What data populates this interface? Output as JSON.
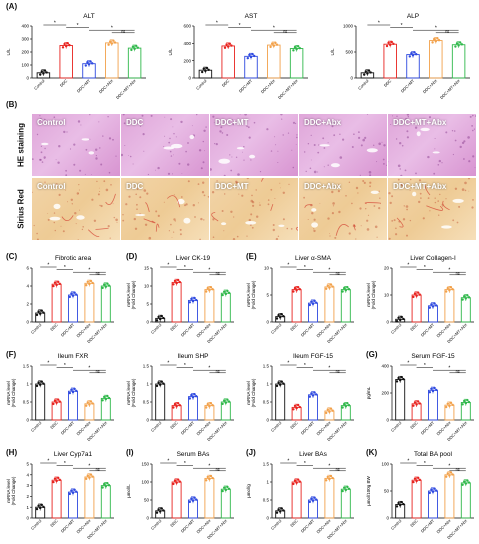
{
  "panel_letters": [
    "(A)",
    "(B)",
    "(C)",
    "(D)",
    "(E)",
    "(F)",
    "(G)",
    "(H)",
    "(I)",
    "(J)",
    "(K)"
  ],
  "histology": {
    "rows": [
      "HE staining",
      "Sirius Red"
    ],
    "groups": [
      "Control",
      "DDC",
      "DDC+MT",
      "DDC+Abx",
      "DDC+MT+Abx"
    ]
  },
  "colors": {
    "Control": "#111111",
    "DDC": "#e8231f",
    "DDC+MT": "#2e49e0",
    "DDC+Abx": "#f2a14a",
    "DDC+MT+Abx": "#2fb84a"
  },
  "chart_data": [
    {
      "type": "bar",
      "title": "ALT",
      "ylabel": "U/L",
      "categories": [
        "Control",
        "DDC",
        "DDC+MT",
        "DDC+Abx",
        "DDC+MT+Abx"
      ],
      "values": [
        40,
        250,
        110,
        270,
        230
      ],
      "ylim": [
        0,
        400
      ],
      "yticks": [
        0,
        100,
        200,
        300,
        400
      ],
      "sig": [
        {
          "a": 0,
          "b": 1,
          "t": "*"
        },
        {
          "a": 1,
          "b": 2,
          "t": "*"
        },
        {
          "a": 2,
          "b": 4,
          "t": "*"
        },
        {
          "a": 3,
          "b": 4,
          "t": "ns"
        }
      ]
    },
    {
      "type": "bar",
      "title": "AST",
      "ylabel": "U/L",
      "categories": [
        "Control",
        "DDC",
        "DDC+MT",
        "DDC+Abx",
        "DDC+MT+Abx"
      ],
      "values": [
        90,
        370,
        250,
        380,
        340
      ],
      "ylim": [
        0,
        600
      ],
      "yticks": [
        0,
        200,
        400,
        600
      ],
      "sig": [
        {
          "a": 0,
          "b": 1,
          "t": "*"
        },
        {
          "a": 1,
          "b": 2,
          "t": "*"
        },
        {
          "a": 2,
          "b": 4,
          "t": "*"
        },
        {
          "a": 3,
          "b": 4,
          "t": "ns"
        }
      ]
    },
    {
      "type": "bar",
      "title": "ALP",
      "ylabel": "U/L",
      "categories": [
        "Control",
        "DDC",
        "DDC+MT",
        "DDC+Abx",
        "DDC+MT+Abx"
      ],
      "values": [
        100,
        650,
        450,
        720,
        640
      ],
      "ylim": [
        0,
        1000
      ],
      "yticks": [
        0,
        500,
        1000
      ],
      "sig": [
        {
          "a": 0,
          "b": 1,
          "t": "*"
        },
        {
          "a": 1,
          "b": 2,
          "t": "*"
        },
        {
          "a": 2,
          "b": 4,
          "t": "*"
        },
        {
          "a": 3,
          "b": 4,
          "t": "ns"
        }
      ]
    },
    {
      "type": "bar",
      "title": "Fibrotic area",
      "ylabel": "",
      "categories": [
        "Control",
        "DDC",
        "DDC+MT",
        "DDC+Abx",
        "DDC+MT+Abx"
      ],
      "values": [
        1,
        4.2,
        3,
        4.3,
        4
      ],
      "ylim": [
        0,
        6
      ],
      "yticks": [
        0,
        2,
        4,
        6
      ],
      "sig": [
        {
          "a": 0,
          "b": 1,
          "t": "*"
        },
        {
          "a": 1,
          "b": 2,
          "t": "*"
        },
        {
          "a": 2,
          "b": 4,
          "t": "*"
        },
        {
          "a": 3,
          "b": 4,
          "t": "ns"
        }
      ]
    },
    {
      "type": "bar",
      "title": "Liver CK-19",
      "ylabel": "mRNA level\n(Fold Change)",
      "categories": [
        "Control",
        "DDC",
        "DDC+MT",
        "DDC+Abx",
        "DDC+MT+Abx"
      ],
      "values": [
        1,
        11,
        6,
        9,
        8
      ],
      "ylim": [
        0,
        15
      ],
      "yticks": [
        0,
        5,
        10,
        15
      ],
      "sig": [
        {
          "a": 0,
          "b": 1,
          "t": "*"
        },
        {
          "a": 1,
          "b": 2,
          "t": "*"
        },
        {
          "a": 2,
          "b": 4,
          "t": "*"
        },
        {
          "a": 3,
          "b": 4,
          "t": "ns"
        }
      ]
    },
    {
      "type": "bar",
      "title": "Liver α-SMA",
      "ylabel": "mRNA level\n(Fold Change)",
      "categories": [
        "Control",
        "DDC",
        "DDC+MT",
        "DDC+Abx",
        "DDC+MT+Abx"
      ],
      "values": [
        1,
        6,
        3.5,
        6.5,
        6
      ],
      "ylim": [
        0,
        10
      ],
      "yticks": [
        0,
        5,
        10
      ],
      "sig": [
        {
          "a": 0,
          "b": 1,
          "t": "*"
        },
        {
          "a": 1,
          "b": 2,
          "t": "*"
        },
        {
          "a": 2,
          "b": 4,
          "t": "*"
        },
        {
          "a": 3,
          "b": 4,
          "t": "ns"
        }
      ]
    },
    {
      "type": "bar",
      "title": "Liver Collagen-I",
      "ylabel": "mRNA level\n(Fold Change)",
      "categories": [
        "Control",
        "DDC",
        "DDC+MT",
        "DDC+Abx",
        "DDC+MT+Abx"
      ],
      "values": [
        1,
        10,
        6,
        12,
        9
      ],
      "ylim": [
        0,
        20
      ],
      "yticks": [
        0,
        10,
        20
      ],
      "sig": [
        {
          "a": 0,
          "b": 1,
          "t": "*"
        },
        {
          "a": 1,
          "b": 2,
          "t": "*"
        },
        {
          "a": 2,
          "b": 4,
          "t": "*"
        },
        {
          "a": 3,
          "b": 4,
          "t": "ns"
        }
      ]
    },
    {
      "type": "bar",
      "title": "Ileum FXR",
      "ylabel": "mRNA level\n(Fold Change)",
      "categories": [
        "Control",
        "DDC",
        "DDC+MT",
        "DDC+Abx",
        "DDC+MT+Abx"
      ],
      "values": [
        1,
        0.5,
        0.8,
        0.45,
        0.6
      ],
      "ylim": [
        0,
        1.5
      ],
      "yticks": [
        0,
        0.5,
        1,
        1.5
      ],
      "sig": [
        {
          "a": 0,
          "b": 1,
          "t": "*"
        },
        {
          "a": 1,
          "b": 2,
          "t": "*"
        },
        {
          "a": 2,
          "b": 4,
          "t": "*"
        },
        {
          "a": 3,
          "b": 4,
          "t": "ns"
        }
      ]
    },
    {
      "type": "bar",
      "title": "Ileum SHP",
      "ylabel": "mRNA level\n(Fold Change)",
      "categories": [
        "Control",
        "DDC",
        "DDC+MT",
        "DDC+Abx",
        "DDC+MT+Abx"
      ],
      "values": [
        1,
        0.4,
        0.65,
        0.4,
        0.5
      ],
      "ylim": [
        0,
        1.5
      ],
      "yticks": [
        0,
        0.5,
        1,
        1.5
      ],
      "sig": [
        {
          "a": 0,
          "b": 1,
          "t": "*"
        },
        {
          "a": 1,
          "b": 2,
          "t": "*"
        },
        {
          "a": 2,
          "b": 4,
          "t": "*"
        },
        {
          "a": 3,
          "b": 4,
          "t": "ns"
        }
      ]
    },
    {
      "type": "bar",
      "title": "Ileum FGF-15",
      "ylabel": "mRNA level\n(Fold Change)",
      "categories": [
        "Control",
        "DDC",
        "DDC+MT",
        "DDC+Abx",
        "DDC+MT+Abx"
      ],
      "values": [
        1,
        0.35,
        0.7,
        0.25,
        0.4
      ],
      "ylim": [
        0,
        1.5
      ],
      "yticks": [
        0,
        0.5,
        1,
        1.5
      ],
      "sig": [
        {
          "a": 0,
          "b": 1,
          "t": "*"
        },
        {
          "a": 1,
          "b": 2,
          "t": "*"
        },
        {
          "a": 2,
          "b": 4,
          "t": "*"
        },
        {
          "a": 3,
          "b": 4,
          "t": "ns"
        }
      ]
    },
    {
      "type": "bar",
      "title": "Serum FGF-15",
      "ylabel": "pg/mL",
      "categories": [
        "Control",
        "DDC",
        "DDC+MT",
        "DDC+Abx",
        "DDC+MT+Abx"
      ],
      "values": [
        300,
        120,
        220,
        110,
        130
      ],
      "ylim": [
        0,
        400
      ],
      "yticks": [
        0,
        200,
        400
      ],
      "sig": [
        {
          "a": 0,
          "b": 1,
          "t": "*"
        },
        {
          "a": 1,
          "b": 2,
          "t": "*"
        },
        {
          "a": 2,
          "b": 4,
          "t": "*"
        },
        {
          "a": 3,
          "b": 4,
          "t": "ns"
        }
      ]
    },
    {
      "type": "bar",
      "title": "Liver Cyp7a1",
      "ylabel": "mRNA level\n(Fold Change)",
      "categories": [
        "Control",
        "DDC",
        "DDC+MT",
        "DDC+Abx",
        "DDC+MT+Abx"
      ],
      "values": [
        1,
        3.5,
        2.4,
        3.8,
        3
      ],
      "ylim": [
        0,
        5
      ],
      "yticks": [
        0,
        1,
        2,
        3,
        4,
        5
      ],
      "sig": [
        {
          "a": 0,
          "b": 1,
          "t": "*"
        },
        {
          "a": 1,
          "b": 2,
          "t": "*"
        },
        {
          "a": 2,
          "b": 4,
          "t": "*"
        },
        {
          "a": 3,
          "b": 4,
          "t": "ns"
        }
      ]
    },
    {
      "type": "bar",
      "title": "Serum BAs",
      "ylabel": "μmol/L",
      "categories": [
        "Control",
        "DDC",
        "DDC+MT",
        "DDC+Abx",
        "DDC+MT+Abx"
      ],
      "values": [
        20,
        100,
        50,
        110,
        80
      ],
      "ylim": [
        0,
        150
      ],
      "yticks": [
        0,
        50,
        100,
        150
      ],
      "sig": [
        {
          "a": 0,
          "b": 1,
          "t": "*"
        },
        {
          "a": 1,
          "b": 2,
          "t": "*"
        },
        {
          "a": 2,
          "b": 4,
          "t": "*"
        },
        {
          "a": 3,
          "b": 4,
          "t": "ns"
        }
      ]
    },
    {
      "type": "bar",
      "title": "Liver BAs",
      "ylabel": "μmol/g",
      "categories": [
        "Control",
        "DDC",
        "DDC+MT",
        "DDC+Abx",
        "DDC+MT+Abx"
      ],
      "values": [
        0.2,
        1,
        0.5,
        1.1,
        0.8
      ],
      "ylim": [
        0,
        1.5
      ],
      "yticks": [
        0,
        0.5,
        1,
        1.5
      ],
      "sig": [
        {
          "a": 0,
          "b": 1,
          "t": "*"
        },
        {
          "a": 1,
          "b": 2,
          "t": "*"
        },
        {
          "a": 2,
          "b": 4,
          "t": "*"
        },
        {
          "a": 3,
          "b": 4,
          "t": "ns"
        }
      ]
    },
    {
      "type": "bar",
      "title": "Total BA pool",
      "ylabel": "μmol/100g BW",
      "categories": [
        "Control",
        "DDC",
        "DDC+MT",
        "DDC+Abx",
        "DDC+MT+Abx"
      ],
      "values": [
        25,
        70,
        50,
        80,
        65
      ],
      "ylim": [
        0,
        100
      ],
      "yticks": [
        0,
        50,
        100
      ],
      "sig": [
        {
          "a": 0,
          "b": 1,
          "t": "*"
        },
        {
          "a": 1,
          "b": 2,
          "t": "*"
        },
        {
          "a": 2,
          "b": 4,
          "t": "*"
        },
        {
          "a": 3,
          "b": 4,
          "t": "ns"
        }
      ]
    }
  ]
}
